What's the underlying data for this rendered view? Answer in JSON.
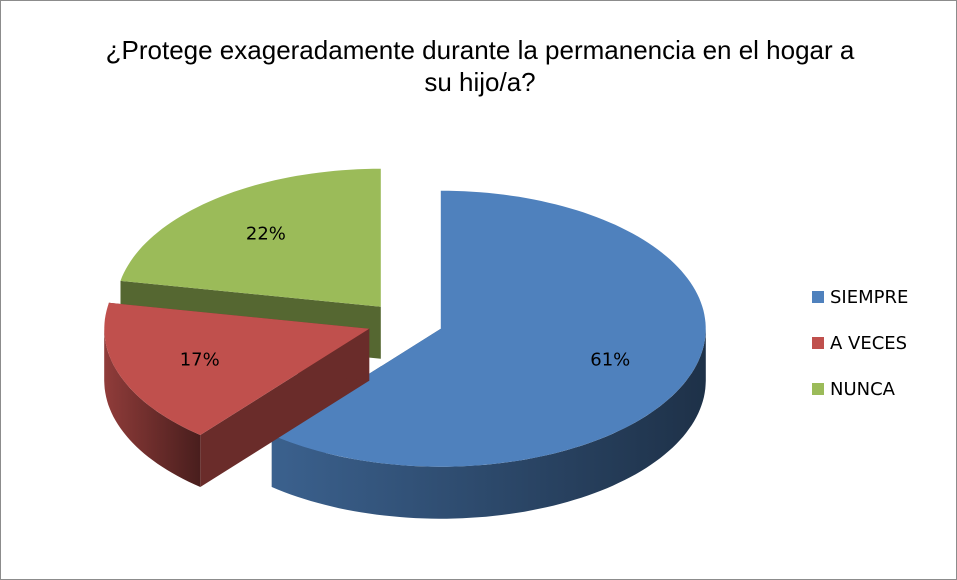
{
  "chart_data": {
    "type": "pie",
    "title": "¿Protege exageradamente durante la permanencia en el hogar a su hijo/a?",
    "categories": [
      "SIEMPRE",
      "A VECES",
      "NUNCA"
    ],
    "values": [
      61,
      17,
      22
    ],
    "value_labels": [
      "61%",
      "17%",
      "22%"
    ],
    "colors": [
      "#4f81bd",
      "#c0504d",
      "#9bbb59"
    ],
    "legend": "right"
  }
}
